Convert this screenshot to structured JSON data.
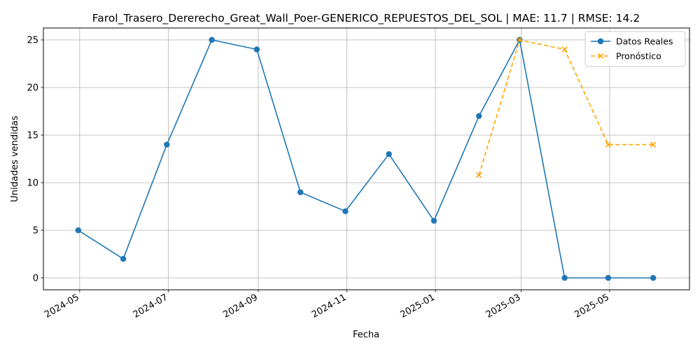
{
  "chart_data": {
    "type": "line",
    "title": "Farol_Trasero_Dererecho_Great_Wall_Poer-GENERICO_REPUESTOS_DEL_SOL | MAE: 11.7 | RMSE: 14.2",
    "xlabel": "Fecha",
    "ylabel": "Unidades vendidas",
    "ylim": [
      -1.25,
      26.25
    ],
    "xlim": [
      "2024-04-06",
      "2025-06-25"
    ],
    "x_ticks": [
      "2024-05",
      "2024-07",
      "2024-09",
      "2024-11",
      "2025-01",
      "2025-03",
      "2025-05"
    ],
    "y_ticks": [
      0,
      5,
      10,
      15,
      20,
      25
    ],
    "grid": true,
    "legend_position": "top-right",
    "series": [
      {
        "name": "Datos Reales",
        "color": "#1f77b4",
        "style": "solid",
        "marker": "circle",
        "x": [
          "2024-04-30",
          "2024-05-31",
          "2024-06-30",
          "2024-07-31",
          "2024-08-31",
          "2024-09-30",
          "2024-10-31",
          "2024-11-30",
          "2024-12-31",
          "2025-01-31",
          "2025-02-28",
          "2025-03-31",
          "2025-04-30",
          "2025-05-31"
        ],
        "values": [
          5,
          2,
          14,
          25,
          24,
          9,
          7,
          13,
          6,
          17,
          25,
          0,
          0,
          0
        ]
      },
      {
        "name": "Pronóstico",
        "color": "#ffa500",
        "style": "dashed",
        "marker": "x",
        "x": [
          "2025-01-31",
          "2025-02-28",
          "2025-03-31",
          "2025-04-30",
          "2025-05-31"
        ],
        "values": [
          10.8,
          25,
          24,
          14,
          14
        ]
      }
    ]
  }
}
